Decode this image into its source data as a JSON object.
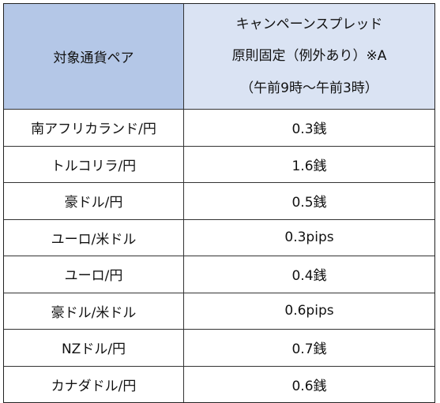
{
  "table": {
    "header": {
      "pair_label": "対象通貨ペア",
      "spread_lines": [
        "キャンペーンスプレッド",
        "原則固定（例外あり）※A",
        "（午前9時～午前3時）"
      ]
    },
    "rows": [
      {
        "pair": "南アフリカランド/円",
        "spread": "0.3銭"
      },
      {
        "pair": "トルコリラ/円",
        "spread": "1.6銭"
      },
      {
        "pair": "豪ドル/円",
        "spread": "0.5銭"
      },
      {
        "pair": "ユーロ/米ドル",
        "spread": "0.3pips"
      },
      {
        "pair": "ユーロ/円",
        "spread": "0.4銭"
      },
      {
        "pair": "豪ドル/米ドル",
        "spread": "0.6pips"
      },
      {
        "pair": "NZドル/円",
        "spread": "0.7銭"
      },
      {
        "pair": "カナダドル/円",
        "spread": "0.6銭"
      }
    ],
    "colors": {
      "header_pair_bg": "#b4c7e7",
      "header_spread_bg": "#dae3f3",
      "border": "#333333"
    }
  }
}
